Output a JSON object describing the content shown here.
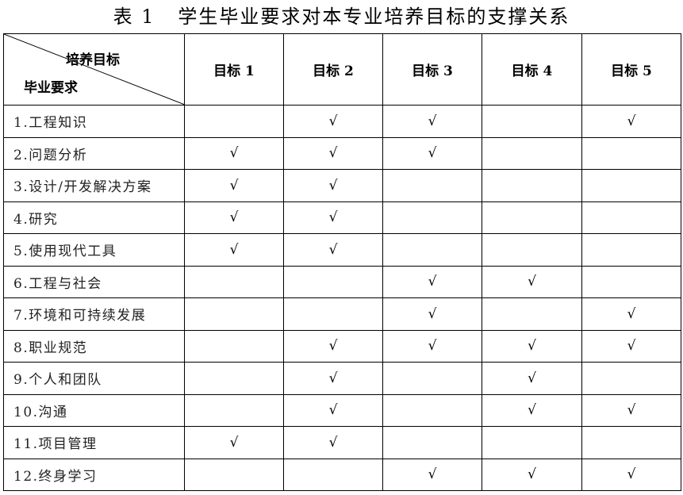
{
  "title": "表 1   学生毕业要求对本专业培养目标的支撑关系",
  "header": {
    "corner_top": "培养目标",
    "corner_bottom": "毕业要求",
    "goals": [
      "目标 1",
      "目标 2",
      "目标 3",
      "目标 4",
      "目标 5"
    ]
  },
  "check_symbol": "√",
  "rows": [
    {
      "label": "1.工程知识",
      "checks": [
        false,
        true,
        true,
        false,
        true
      ]
    },
    {
      "label": "2.问题分析",
      "checks": [
        true,
        true,
        true,
        false,
        false
      ]
    },
    {
      "label": "3.设计/开发解决方案",
      "checks": [
        true,
        true,
        false,
        false,
        false
      ]
    },
    {
      "label": "4.研究",
      "checks": [
        true,
        true,
        false,
        false,
        false
      ]
    },
    {
      "label": "5.使用现代工具",
      "checks": [
        true,
        true,
        false,
        false,
        false
      ]
    },
    {
      "label": "6.工程与社会",
      "checks": [
        false,
        false,
        true,
        true,
        false
      ]
    },
    {
      "label": "7.环境和可持续发展",
      "checks": [
        false,
        false,
        true,
        false,
        true
      ]
    },
    {
      "label": "8.职业规范",
      "checks": [
        false,
        true,
        true,
        true,
        true
      ]
    },
    {
      "label": "9.个人和团队",
      "checks": [
        false,
        true,
        false,
        true,
        false
      ]
    },
    {
      "label": "10.沟通",
      "checks": [
        false,
        true,
        false,
        true,
        true
      ]
    },
    {
      "label": "11.项目管理",
      "checks": [
        true,
        true,
        false,
        false,
        false
      ]
    },
    {
      "label": "12.终身学习",
      "checks": [
        false,
        false,
        true,
        true,
        true
      ]
    }
  ]
}
